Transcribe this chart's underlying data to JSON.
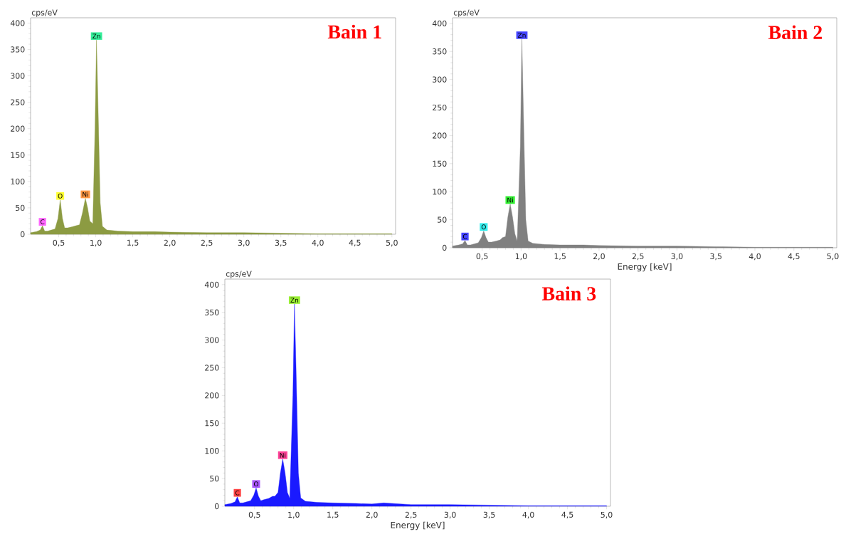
{
  "chart_data": [
    {
      "type": "area",
      "title": "Bain 1",
      "ylabel": "cps/eV",
      "color": "#8c9b42",
      "x": [
        0.12,
        0.2,
        0.25,
        0.28,
        0.31,
        0.35,
        0.4,
        0.45,
        0.49,
        0.52,
        0.55,
        0.58,
        0.62,
        0.68,
        0.73,
        0.78,
        0.82,
        0.86,
        0.89,
        0.92,
        0.96,
        0.99,
        1.01,
        1.03,
        1.06,
        1.09,
        1.15,
        1.3,
        1.5,
        1.8,
        2.0,
        2.5,
        3.0,
        3.5,
        4.0,
        4.5,
        5.0
      ],
      "values": [
        3,
        5,
        8,
        16,
        6,
        6,
        8,
        10,
        30,
        65,
        30,
        12,
        12,
        14,
        16,
        18,
        40,
        68,
        50,
        25,
        20,
        200,
        368,
        250,
        60,
        15,
        8,
        6,
        5,
        5,
        4,
        3,
        3,
        2,
        1,
        1,
        1
      ],
      "xlim": [
        0.12,
        5.05
      ],
      "ylim": [
        0,
        410
      ],
      "xticks": [
        {
          "value": 0.5,
          "label": "0,5"
        },
        {
          "value": 1.0,
          "label": "1,0"
        },
        {
          "value": 1.5,
          "label": "1,5"
        },
        {
          "value": 2.0,
          "label": "2,0"
        },
        {
          "value": 2.5,
          "label": "2,5"
        },
        {
          "value": 3.0,
          "label": "3,0"
        },
        {
          "value": 3.5,
          "label": "3,5"
        },
        {
          "value": 4.0,
          "label": "4,0"
        },
        {
          "value": 4.5,
          "label": "4,5"
        },
        {
          "value": 5.0,
          "label": "5,0"
        }
      ],
      "yticks": [
        0,
        50,
        100,
        150,
        200,
        250,
        300,
        350,
        400
      ],
      "annotations": [
        {
          "text": "C",
          "x": 0.28,
          "y": 16
        },
        {
          "text": "O",
          "x": 0.52,
          "y": 65
        },
        {
          "text": "Ni",
          "x": 0.86,
          "y": 68
        },
        {
          "text": "Zn",
          "x": 1.01,
          "y": 368
        }
      ]
    },
    {
      "type": "area",
      "title": "Bain 2",
      "ylabel": "cps/eV",
      "xlabel": "Energy [keV]",
      "color": "#808080",
      "x": [
        0.12,
        0.2,
        0.25,
        0.28,
        0.31,
        0.35,
        0.4,
        0.45,
        0.49,
        0.52,
        0.55,
        0.58,
        0.62,
        0.68,
        0.73,
        0.76,
        0.8,
        0.83,
        0.86,
        0.89,
        0.92,
        0.95,
        0.99,
        1.01,
        1.03,
        1.06,
        1.09,
        1.15,
        1.3,
        1.5,
        1.8,
        2.0,
        2.5,
        3.0,
        3.5,
        4.0,
        4.5,
        5.0
      ],
      "values": [
        3,
        5,
        7,
        13,
        5,
        5,
        7,
        9,
        18,
        30,
        18,
        10,
        10,
        12,
        14,
        18,
        20,
        55,
        78,
        55,
        25,
        12,
        180,
        372,
        240,
        50,
        12,
        8,
        6,
        5,
        5,
        4,
        3,
        3,
        2,
        1,
        1,
        1
      ],
      "xlim": [
        0.12,
        5.05
      ],
      "ylim": [
        0,
        410
      ],
      "xticks": [
        {
          "value": 0.5,
          "label": "0,5"
        },
        {
          "value": 1.0,
          "label": "1,0"
        },
        {
          "value": 1.5,
          "label": "1,5"
        },
        {
          "value": 2.0,
          "label": "2,0"
        },
        {
          "value": 2.5,
          "label": "2,5"
        },
        {
          "value": 3.0,
          "label": "3,0"
        },
        {
          "value": 3.5,
          "label": "3,5"
        },
        {
          "value": 4.0,
          "label": "4,0"
        },
        {
          "value": 4.5,
          "label": "4,5"
        },
        {
          "value": 5.0,
          "label": "5,0"
        }
      ],
      "yticks": [
        0,
        50,
        100,
        150,
        200,
        250,
        300,
        350,
        400
      ],
      "annotations": [
        {
          "text": "C",
          "x": 0.28,
          "y": 13
        },
        {
          "text": "O",
          "x": 0.52,
          "y": 30
        },
        {
          "text": "Ni",
          "x": 0.86,
          "y": 78
        },
        {
          "text": "Zn",
          "x": 1.01,
          "y": 372
        }
      ]
    },
    {
      "type": "area",
      "title": "Bain 3",
      "ylabel": "cps/eV",
      "xlabel": "Energy [keV]",
      "color": "#1a1aff",
      "x": [
        0.12,
        0.2,
        0.25,
        0.28,
        0.31,
        0.35,
        0.4,
        0.45,
        0.49,
        0.52,
        0.55,
        0.58,
        0.62,
        0.68,
        0.73,
        0.76,
        0.8,
        0.83,
        0.86,
        0.89,
        0.92,
        0.95,
        0.99,
        1.01,
        1.03,
        1.06,
        1.09,
        1.15,
        1.3,
        1.5,
        1.8,
        2.0,
        2.15,
        2.5,
        3.0,
        3.5,
        4.0,
        4.5,
        5.0
      ],
      "values": [
        3,
        5,
        8,
        17,
        6,
        6,
        8,
        10,
        20,
        33,
        18,
        10,
        12,
        14,
        18,
        18,
        25,
        60,
        85,
        60,
        25,
        14,
        200,
        365,
        250,
        60,
        15,
        9,
        7,
        6,
        5,
        4,
        6,
        3,
        3,
        2,
        1,
        1,
        1
      ],
      "xlim": [
        0.12,
        5.05
      ],
      "ylim": [
        0,
        410
      ],
      "xticks": [
        {
          "value": 0.5,
          "label": "0,5"
        },
        {
          "value": 1.0,
          "label": "1,0"
        },
        {
          "value": 1.5,
          "label": "1,5"
        },
        {
          "value": 2.0,
          "label": "2,0"
        },
        {
          "value": 2.5,
          "label": "2,5"
        },
        {
          "value": 3.0,
          "label": "3,0"
        },
        {
          "value": 3.5,
          "label": "3,5"
        },
        {
          "value": 4.0,
          "label": "4,0"
        },
        {
          "value": 4.5,
          "label": "4,5"
        },
        {
          "value": 5.0,
          "label": "5,0"
        }
      ],
      "yticks": [
        0,
        50,
        100,
        150,
        200,
        250,
        300,
        350,
        400
      ],
      "annotations": [
        {
          "text": "C",
          "x": 0.28,
          "y": 17
        },
        {
          "text": "O",
          "x": 0.52,
          "y": 33
        },
        {
          "text": "Ni",
          "x": 0.86,
          "y": 85
        },
        {
          "text": "Zn",
          "x": 1.01,
          "y": 365
        }
      ]
    }
  ]
}
